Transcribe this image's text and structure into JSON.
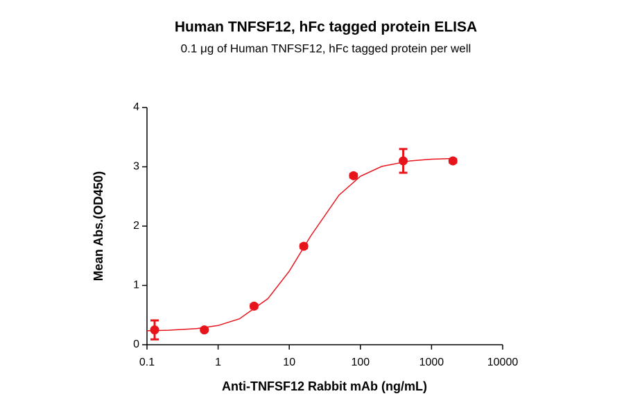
{
  "chart_data": {
    "type": "scatter",
    "title": "Human TNFSF12, hFc tagged protein ELISA",
    "subtitle": "0.1 μg of Human TNFSF12, hFc tagged protein per well",
    "x_label": "Anti-TNFSF12 Rabbit mAb (ng/mL)",
    "y_label": "Mean Abs.(OD450)",
    "x_scale": "log",
    "x": [
      0.128,
      0.64,
      3.2,
      16,
      80,
      400,
      2000
    ],
    "values": [
      0.25,
      0.25,
      0.65,
      1.66,
      2.85,
      3.1,
      3.1
    ],
    "errors": [
      0.16,
      0.02,
      0.03,
      0.03,
      0.03,
      0.2,
      0.03
    ],
    "color": "#e8141c",
    "curve": {
      "x": [
        0.1,
        0.2,
        0.5,
        1,
        2,
        5,
        10,
        20,
        50,
        100,
        200,
        500,
        1000,
        2000
      ],
      "values": [
        0.236,
        0.244,
        0.272,
        0.324,
        0.438,
        0.776,
        1.24,
        1.832,
        2.522,
        2.84,
        3.007,
        3.1,
        3.128,
        3.14
      ]
    },
    "xlim": [
      0.1,
      10000
    ],
    "ylim": [
      0,
      4
    ],
    "xticks": [
      0.1,
      1,
      10,
      100,
      1000,
      10000
    ],
    "yticks": [
      0,
      1,
      2,
      3,
      4
    ]
  }
}
